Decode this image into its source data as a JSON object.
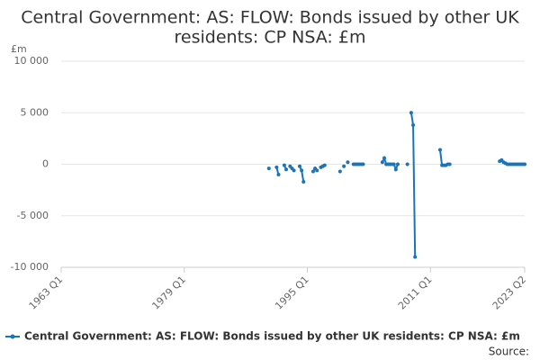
{
  "chart_data": {
    "type": "line",
    "title": [
      "Central Government: AS: FLOW: Bonds issued by other UK",
      "residents: CP NSA: £m"
    ],
    "y_label": "£m",
    "source": "Source:",
    "grid": true,
    "legend": "bottom",
    "xlim": [
      "1963 Q1",
      "2023 Q2"
    ],
    "xticks": [
      "1963 Q1",
      "1979 Q1",
      "1995 Q1",
      "2011 Q1",
      "2023 Q2"
    ],
    "ylim": [
      -10000,
      10000
    ],
    "yticks": [
      {
        "value": -10000,
        "label": "-10 000"
      },
      {
        "value": -5000,
        "label": "-5 000"
      },
      0,
      {
        "value": 5000,
        "label": "5 000"
      },
      {
        "value": 10000,
        "label": "10 000"
      }
    ],
    "x": [
      "1990 Q1",
      "1990 Q2",
      "1991 Q1",
      "1991 Q2",
      "1991 Q3",
      "1992 Q1",
      "1992 Q2",
      "1992 Q3",
      "1992 Q4",
      "1993 Q1",
      "1993 Q2",
      "1993 Q3",
      "1994 Q1",
      "1994 Q2",
      "1994 Q3",
      "1994 Q4",
      "1995 Q4",
      "1996 Q1",
      "1996 Q2",
      "1996 Q3",
      "1996 Q4",
      "1997 Q1",
      "1997 Q2",
      "1997 Q3",
      "1999 Q2",
      "1999 Q3",
      "1999 Q4",
      "2000 Q1",
      "2000 Q2",
      "2000 Q3",
      "2001 Q1",
      "2001 Q2",
      "2001 Q3",
      "2001 Q4",
      "2002 Q1",
      "2002 Q2",
      "2002 Q3",
      "2004 Q4",
      "2005 Q1",
      "2005 Q2",
      "2005 Q3",
      "2005 Q4",
      "2006 Q1",
      "2006 Q2",
      "2006 Q3",
      "2006 Q4",
      "2007 Q1",
      "2008 Q1",
      "2008 Q2",
      "2008 Q3",
      "2008 Q4",
      "2009 Q1",
      "2009 Q2",
      "2012 Q2",
      "2012 Q3",
      "2012 Q4",
      "2013 Q1",
      "2013 Q2",
      "2013 Q3",
      "2013 Q4",
      "2020 Q1",
      "2020 Q2",
      "2020 Q3",
      "2020 Q4",
      "2021 Q1",
      "2021 Q2",
      "2021 Q3",
      "2021 Q4",
      "2022 Q1",
      "2022 Q2",
      "2022 Q3",
      "2022 Q4",
      "2023 Q1",
      "2023 Q2"
    ],
    "series": [
      {
        "name": "Central Government: AS: FLOW: Bonds issued by other UK residents: CP NSA: £m",
        "color": "#1a74b8",
        "values": [
          -400,
          null,
          -300,
          -1000,
          null,
          -100,
          -500,
          null,
          -200,
          -400,
          -600,
          null,
          -200,
          -600,
          -1700,
          null,
          -700,
          -400,
          -600,
          null,
          -300,
          -200,
          -100,
          null,
          -700,
          null,
          -200,
          null,
          200,
          null,
          0,
          0,
          0,
          0,
          0,
          0,
          null,
          200,
          600,
          0,
          0,
          0,
          0,
          0,
          -500,
          0,
          null,
          0,
          null,
          5000,
          3800,
          -9000,
          null,
          1400,
          -100,
          -100,
          -100,
          0,
          0,
          null,
          300,
          400,
          200,
          100,
          0,
          0,
          0,
          0,
          0,
          0,
          0,
          0,
          0,
          0
        ]
      }
    ]
  }
}
